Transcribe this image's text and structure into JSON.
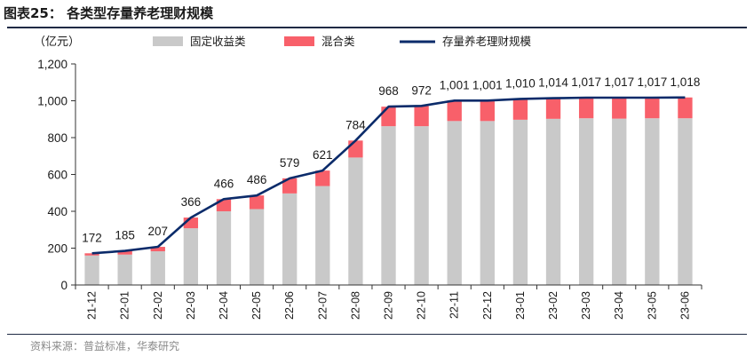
{
  "header": {
    "title": "图表25：  各类型存量养老理财规模"
  },
  "footer": {
    "source": "资料来源：普益标准，华泰研究"
  },
  "chart_data": {
    "type": "bar",
    "stacked": true,
    "title": "各类型存量养老理财规模",
    "ylabel": "（亿元）",
    "xlabel": "",
    "ylim": [
      0,
      1200
    ],
    "yticks": [
      0,
      200,
      400,
      600,
      800,
      1000,
      1200
    ],
    "ytick_labels": [
      "0",
      "200",
      "400",
      "600",
      "800",
      "1,000",
      "1,200"
    ],
    "grid": false,
    "legend_position": "top",
    "categories": [
      "21-12",
      "22-01",
      "22-02",
      "22-03",
      "22-04",
      "22-05",
      "22-06",
      "22-07",
      "22-08",
      "22-09",
      "22-10",
      "22-11",
      "22-12",
      "23-01",
      "23-02",
      "23-03",
      "23-04",
      "23-05",
      "23-06"
    ],
    "series": [
      {
        "name": "固定收益类",
        "kind": "bar",
        "color": "#c9c9c9",
        "values": [
          160,
          165,
          183,
          308,
          400,
          412,
          497,
          537,
          692,
          862,
          862,
          890,
          890,
          897,
          902,
          905,
          903,
          905,
          905
        ]
      },
      {
        "name": "混合类",
        "kind": "bar",
        "color": "#f8606a",
        "values": [
          12,
          20,
          24,
          58,
          66,
          74,
          82,
          84,
          92,
          106,
          110,
          111,
          111,
          113,
          112,
          112,
          114,
          112,
          113
        ]
      },
      {
        "name": "存量养老理财规模",
        "kind": "line",
        "color": "#0b2b6a",
        "values": [
          172,
          185,
          207,
          366,
          466,
          486,
          579,
          621,
          784,
          968,
          972,
          1001,
          1001,
          1010,
          1014,
          1017,
          1017,
          1017,
          1018
        ],
        "labels": [
          "172",
          "185",
          "207",
          "366",
          "466",
          "486",
          "579",
          "621",
          "784",
          "968",
          "972",
          "1,001",
          "1,001",
          "1,010",
          "1,014",
          "1,017",
          "1,017",
          "1,017",
          "1,018"
        ]
      }
    ]
  }
}
